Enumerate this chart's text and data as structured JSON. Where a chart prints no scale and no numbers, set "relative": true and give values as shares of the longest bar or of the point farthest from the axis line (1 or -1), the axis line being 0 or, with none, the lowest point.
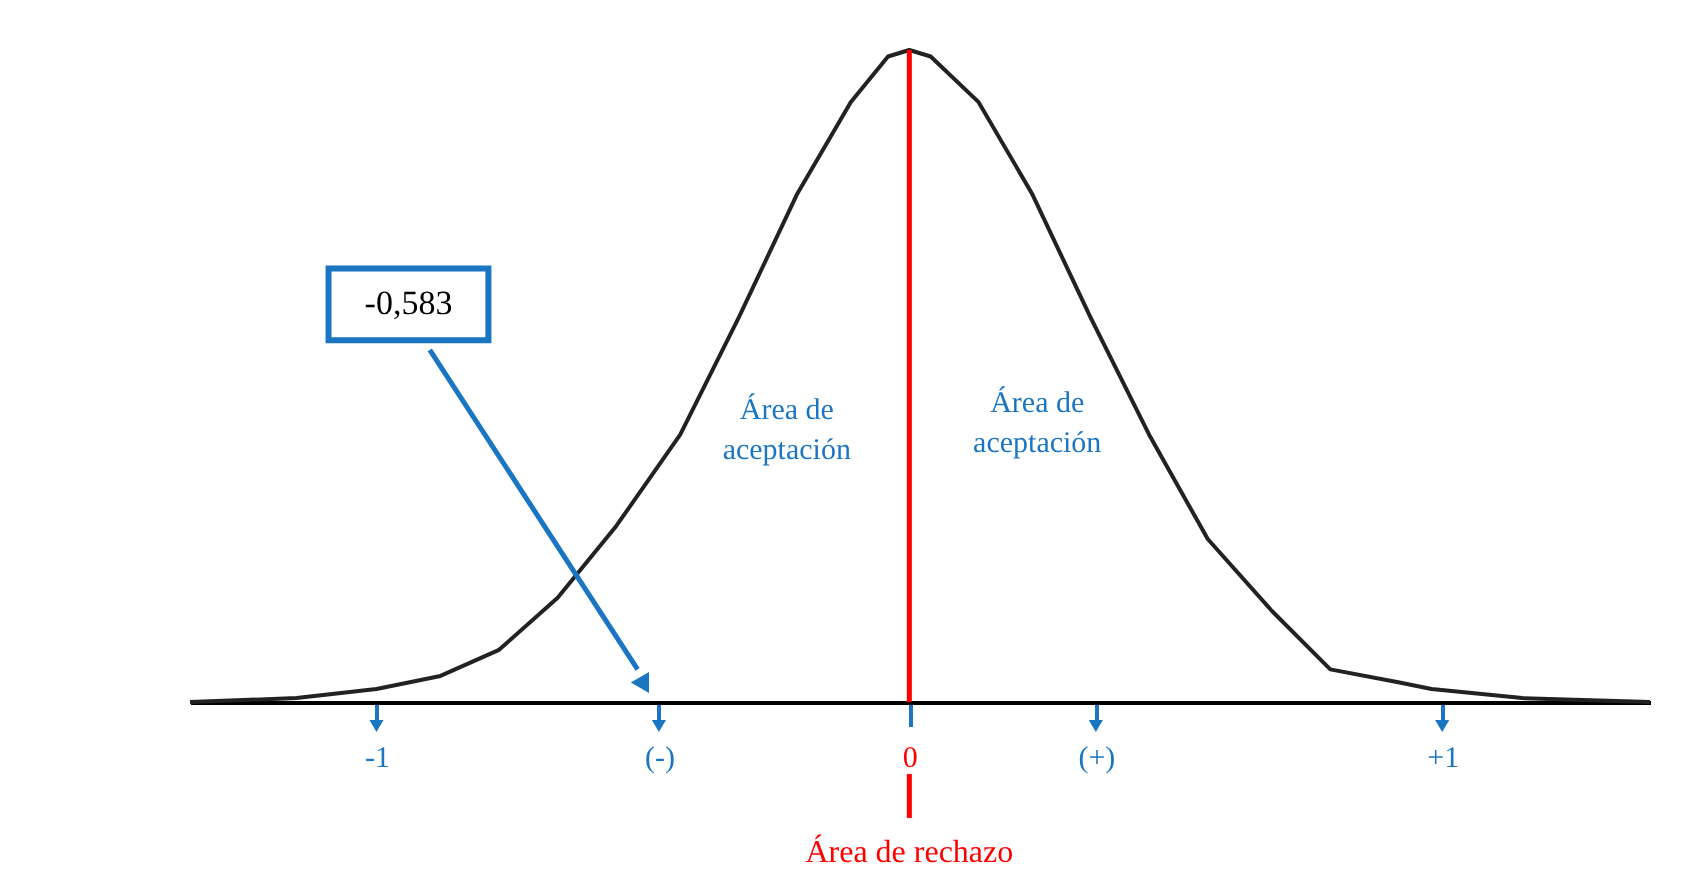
{
  "chart_data": {
    "type": "line",
    "relative": true,
    "x": [
      -1.35,
      -1.15,
      -1.0,
      -0.88,
      -0.77,
      -0.66,
      -0.55,
      -0.43,
      -0.32,
      -0.21,
      -0.11,
      -0.04,
      0,
      0.04,
      0.13,
      0.23,
      0.34,
      0.45,
      0.56,
      0.68,
      0.79,
      0.92,
      0.98,
      1.15,
      1.39
    ],
    "series": [
      {
        "color": "#222222",
        "values": [
          0,
          0.006,
          0.02,
          0.04,
          0.08,
          0.16,
          0.27,
          0.41,
          0.59,
          0.78,
          0.92,
          0.99,
          1,
          0.99,
          0.92,
          0.78,
          0.59,
          0.41,
          0.25,
          0.14,
          0.05,
          0.03,
          0.02,
          0.006,
          0
        ]
      }
    ],
    "xlim": [
      -1.35,
      1.39
    ],
    "xticks": [
      {
        "value": -1,
        "label": "-1"
      },
      {
        "value": -0.47,
        "label": "(-)"
      },
      0,
      {
        "value": 0.35,
        "label": "(+)"
      },
      {
        "value": 1,
        "label": "+1"
      }
    ],
    "ref_lines": [
      {
        "axis": "x",
        "value": 0,
        "label": "Área de rechazo",
        "color": "#ff0000"
      }
    ],
    "annotations": [
      {
        "text": "-0,583",
        "x": -0.5,
        "y": 0.03
      },
      "Área de\naceptación",
      "Área de\naceptación"
    ],
    "grid": false,
    "marker": "none",
    "line_style": "solid"
  }
}
